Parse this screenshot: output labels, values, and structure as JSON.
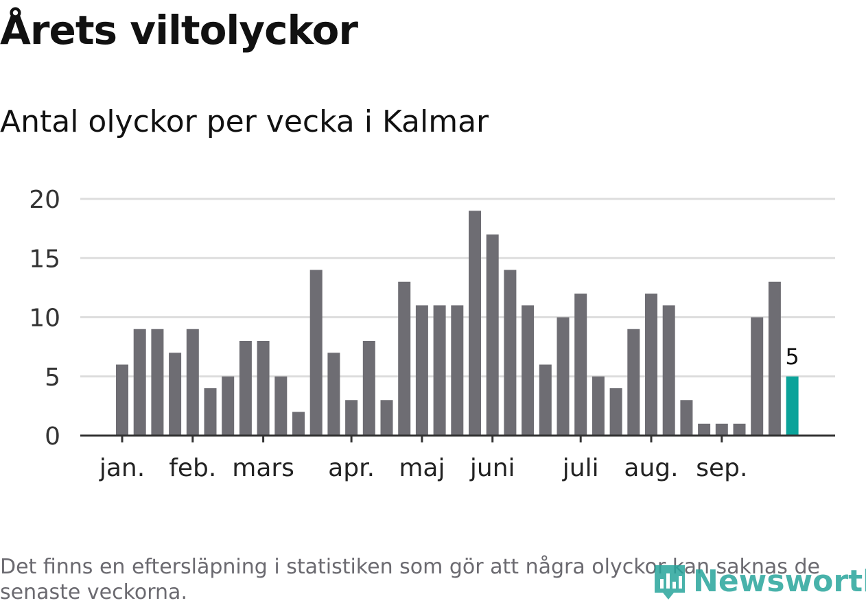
{
  "title": "Årets viltolyckor",
  "subtitle": "Antal olyckor per vecka i Kalmar",
  "note": "Det finns en eftersläpning i statistiken som gör att några olyckor kan saknas de senaste veckorna.",
  "brand": "Newsworthy",
  "colors": {
    "bar": "#6e6d73",
    "highlight": "#0ba39a",
    "grid": "#dddddd",
    "axis": "#333333",
    "brand": "#29a59c"
  },
  "chart_data": {
    "type": "bar",
    "title": "Årets viltolyckor",
    "subtitle": "Antal olyckor per vecka i Kalmar",
    "xlabel": "",
    "ylabel": "",
    "ylim": [
      0,
      20
    ],
    "yticks": [
      0,
      5,
      10,
      15,
      20
    ],
    "grid": true,
    "values": [
      6,
      9,
      9,
      7,
      9,
      4,
      5,
      8,
      8,
      5,
      2,
      14,
      7,
      3,
      8,
      3,
      13,
      11,
      11,
      11,
      19,
      17,
      14,
      11,
      6,
      10,
      12,
      5,
      4,
      9,
      12,
      11,
      3,
      1,
      1,
      1,
      10,
      13,
      5
    ],
    "highlight_index": 38,
    "highlight_label": "5",
    "month_labels": [
      {
        "label": "jan.",
        "bar_index": 0
      },
      {
        "label": "feb.",
        "bar_index": 4
      },
      {
        "label": "mars",
        "bar_index": 8
      },
      {
        "label": "apr.",
        "bar_index": 13
      },
      {
        "label": "maj",
        "bar_index": 17
      },
      {
        "label": "juni",
        "bar_index": 21
      },
      {
        "label": "juli",
        "bar_index": 26
      },
      {
        "label": "aug.",
        "bar_index": 30
      },
      {
        "label": "sep.",
        "bar_index": 34
      }
    ]
  }
}
